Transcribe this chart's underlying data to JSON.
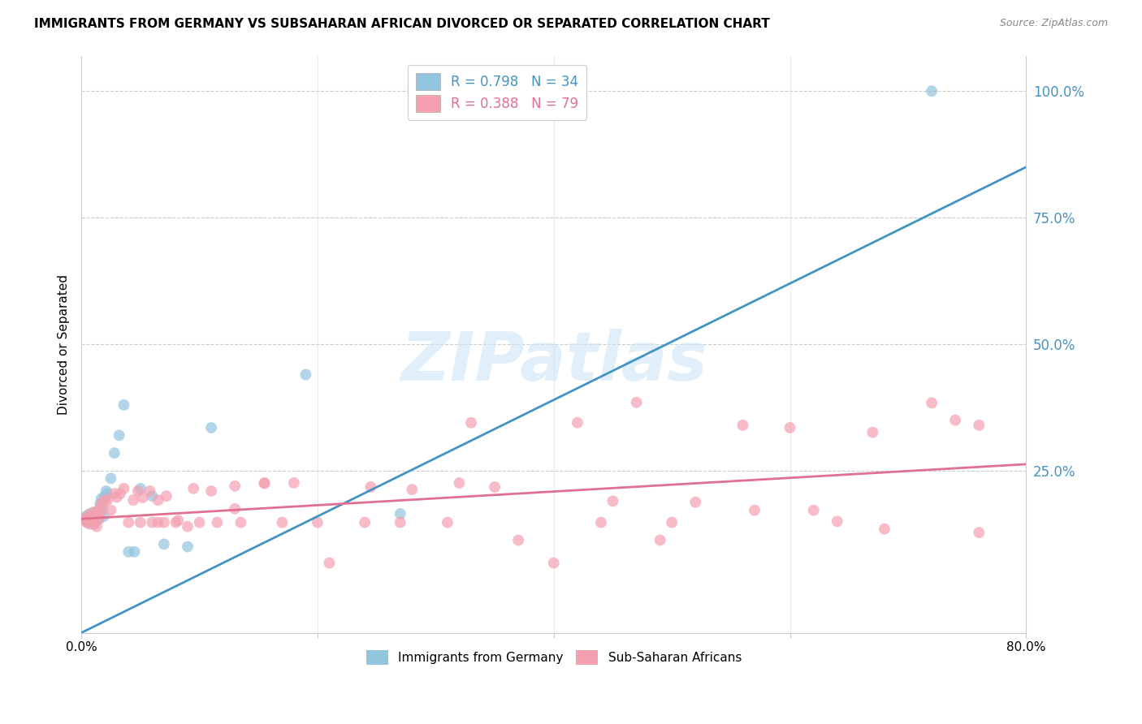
{
  "title": "IMMIGRANTS FROM GERMANY VS SUBSAHARAN AFRICAN DIVORCED OR SEPARATED CORRELATION CHART",
  "source": "Source: ZipAtlas.com",
  "ylabel": "Divorced or Separated",
  "legend_labels": [
    "Immigrants from Germany",
    "Sub-Saharan Africans"
  ],
  "legend_R": [
    "0.798",
    "0.388"
  ],
  "legend_N": [
    "34",
    "79"
  ],
  "blue_scatter_color": "#92c5de",
  "pink_scatter_color": "#f4a0b0",
  "blue_line_color": "#4393c3",
  "pink_line_color": "#e07090",
  "watermark": "ZIPatlas",
  "ytick_labels": [
    "100.0%",
    "75.0%",
    "50.0%",
    "25.0%"
  ],
  "ytick_values": [
    1.0,
    0.75,
    0.5,
    0.25
  ],
  "xlim": [
    0.0,
    0.8
  ],
  "ylim": [
    -0.07,
    1.07
  ],
  "blue_line_slope": 1.15,
  "blue_line_intercept": -0.07,
  "pink_line_slope": 0.135,
  "pink_line_intercept": 0.155,
  "blue_scatter_x": [
    0.003,
    0.004,
    0.005,
    0.006,
    0.007,
    0.008,
    0.009,
    0.01,
    0.011,
    0.012,
    0.013,
    0.014,
    0.015,
    0.016,
    0.017,
    0.018,
    0.019,
    0.02,
    0.021,
    0.022,
    0.025,
    0.028,
    0.032,
    0.036,
    0.04,
    0.045,
    0.05,
    0.06,
    0.07,
    0.09,
    0.11,
    0.19,
    0.27,
    0.72
  ],
  "blue_scatter_y": [
    0.155,
    0.16,
    0.148,
    0.152,
    0.165,
    0.15,
    0.158,
    0.145,
    0.168,
    0.155,
    0.162,
    0.17,
    0.155,
    0.185,
    0.195,
    0.175,
    0.16,
    0.2,
    0.21,
    0.205,
    0.235,
    0.285,
    0.32,
    0.38,
    0.09,
    0.09,
    0.215,
    0.2,
    0.105,
    0.1,
    0.335,
    0.44,
    0.165,
    1.0
  ],
  "pink_scatter_x": [
    0.003,
    0.004,
    0.005,
    0.006,
    0.007,
    0.008,
    0.009,
    0.01,
    0.011,
    0.012,
    0.013,
    0.014,
    0.015,
    0.016,
    0.017,
    0.018,
    0.02,
    0.022,
    0.025,
    0.028,
    0.03,
    0.033,
    0.036,
    0.04,
    0.044,
    0.048,
    0.052,
    0.058,
    0.065,
    0.072,
    0.082,
    0.095,
    0.11,
    0.13,
    0.155,
    0.18,
    0.21,
    0.245,
    0.28,
    0.32,
    0.37,
    0.42,
    0.47,
    0.52,
    0.57,
    0.62,
    0.67,
    0.72,
    0.76
  ],
  "pink_scatter_y": [
    0.155,
    0.15,
    0.148,
    0.162,
    0.145,
    0.158,
    0.15,
    0.168,
    0.145,
    0.165,
    0.14,
    0.162,
    0.155,
    0.18,
    0.17,
    0.188,
    0.192,
    0.192,
    0.172,
    0.205,
    0.198,
    0.205,
    0.215,
    0.148,
    0.192,
    0.21,
    0.197,
    0.21,
    0.192,
    0.2,
    0.152,
    0.215,
    0.21,
    0.175,
    0.226,
    0.226,
    0.068,
    0.218,
    0.213,
    0.226,
    0.113,
    0.345,
    0.385,
    0.188,
    0.172,
    0.172,
    0.326,
    0.384,
    0.128
  ],
  "extra_pink_x": [
    0.56,
    0.6,
    0.64,
    0.68,
    0.74,
    0.76,
    0.13,
    0.155,
    0.35,
    0.4,
    0.45,
    0.49,
    0.33,
    0.44,
    0.5,
    0.05,
    0.06,
    0.065,
    0.07,
    0.08,
    0.09,
    0.1,
    0.115,
    0.135,
    0.17,
    0.2,
    0.24,
    0.27,
    0.31
  ],
  "extra_pink_y": [
    0.34,
    0.335,
    0.15,
    0.135,
    0.35,
    0.34,
    0.22,
    0.225,
    0.218,
    0.068,
    0.19,
    0.113,
    0.345,
    0.148,
    0.148,
    0.148,
    0.148,
    0.148,
    0.148,
    0.148,
    0.14,
    0.148,
    0.148,
    0.148,
    0.148,
    0.148,
    0.148,
    0.148,
    0.148
  ]
}
